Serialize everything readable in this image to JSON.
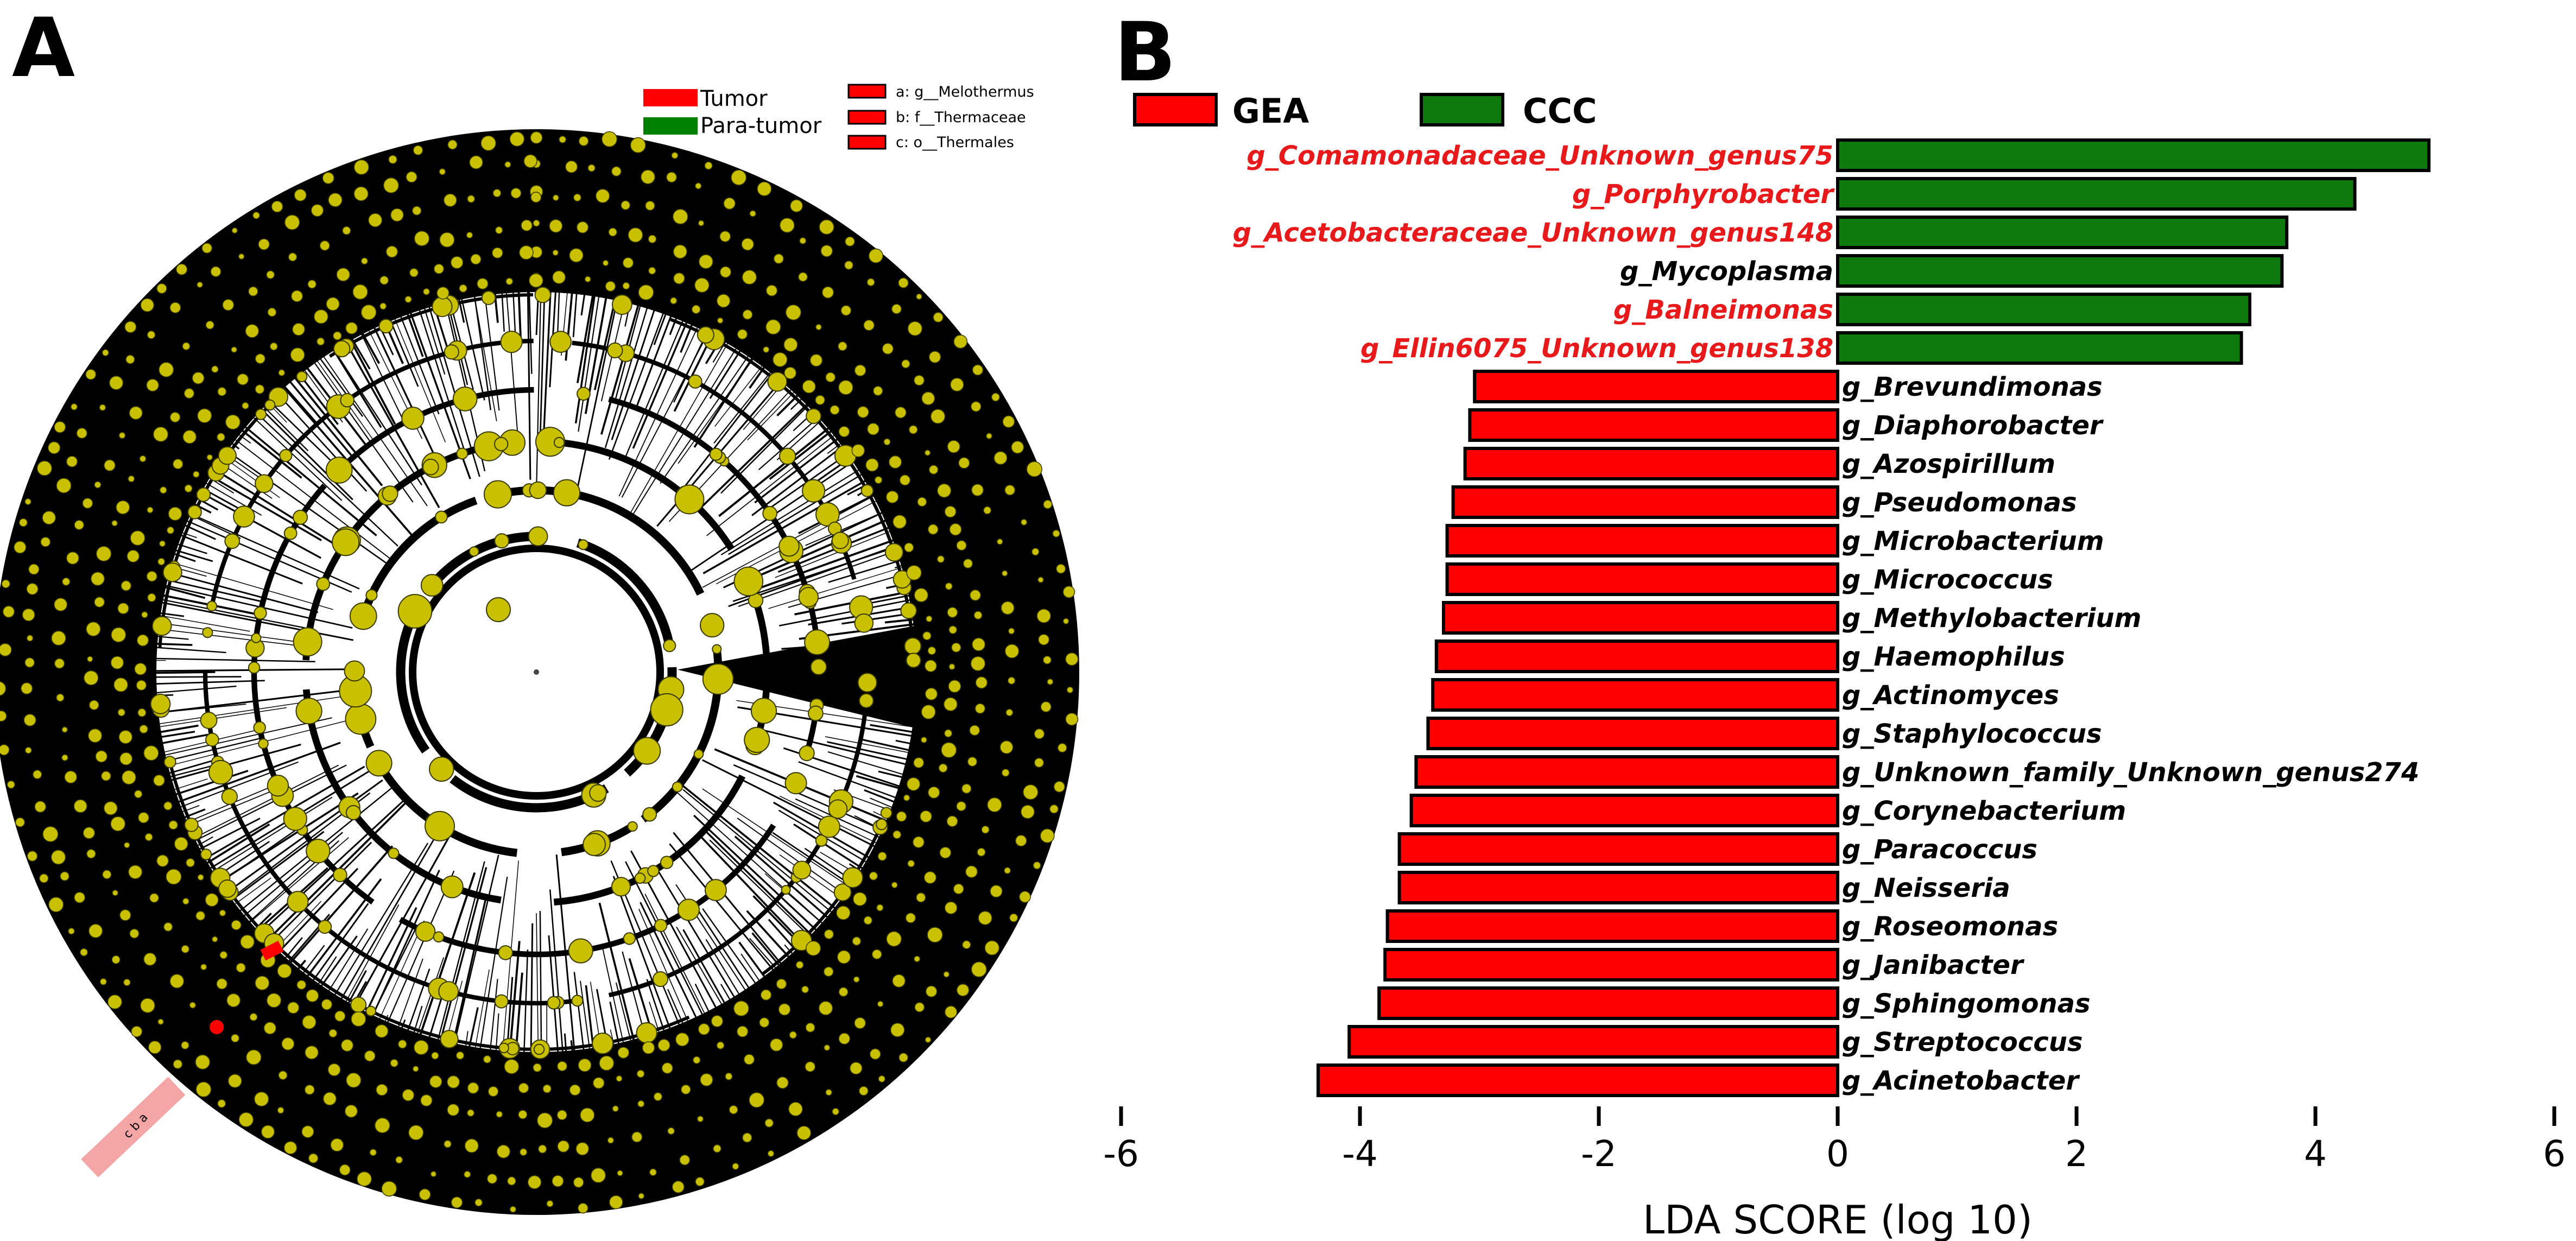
{
  "panels": {
    "left_letter": "A",
    "right_letter": "B"
  },
  "cladogram": {
    "legend": [
      {
        "label": "Tumor",
        "color": "#ff0000"
      },
      {
        "label": "Para-tumor",
        "color": "#008000"
      }
    ],
    "key": [
      {
        "label": "a: g__Melothermus"
      },
      {
        "label": "b: f__Thermaceae"
      },
      {
        "label": "c: o__Thermales"
      }
    ],
    "edge_letters": "c b a",
    "node_color": "#c8c000",
    "highlight_color": "#ff0000"
  },
  "chart_data": {
    "type": "bar",
    "orientation": "horizontal",
    "xlabel": "LDA SCORE (log 10)",
    "xlim": [
      -6,
      6
    ],
    "xticks": [
      -6,
      -4,
      -2,
      0,
      2,
      4,
      6
    ],
    "legend": [
      {
        "name": "GEA",
        "color": "#ff0000"
      },
      {
        "name": "CCC",
        "color": "#0e7a0d"
      }
    ],
    "categories": [
      "g_Comamonadaceae_Unknown_genus75",
      "g_Porphyrobacter",
      "g_Acetobacteraceae_Unknown_genus148",
      "g_Mycoplasma",
      "g_Balneimonas",
      "g_Ellin6075_Unknown_genus138",
      "g_Brevundimonas",
      "g_Diaphorobacter",
      "g_Azospirillum",
      "g_Pseudomonas",
      "g_Microbacterium",
      "g_Micrococcus",
      "g_Methylobacterium",
      "g_Haemophilus",
      "g_Actinomyces",
      "g_Staphylococcus",
      "g_Unknown_family_Unknown_genus274",
      "g_Corynebacterium",
      "g_Paracoccus",
      "g_Neisseria",
      "g_Roseomonas",
      "g_Janibacter",
      "g_Sphingomonas",
      "g_Streptococcus",
      "g_Acinetobacter"
    ],
    "values": [
      4.95,
      4.33,
      3.76,
      3.72,
      3.45,
      3.38,
      -3.04,
      -3.08,
      -3.12,
      -3.22,
      -3.27,
      -3.27,
      -3.3,
      -3.36,
      -3.39,
      -3.43,
      -3.53,
      -3.57,
      -3.67,
      -3.67,
      -3.77,
      -3.79,
      -3.84,
      -4.09,
      -4.35
    ],
    "groups": [
      "CCC",
      "CCC",
      "CCC",
      "CCC",
      "CCC",
      "CCC",
      "GEA",
      "GEA",
      "GEA",
      "GEA",
      "GEA",
      "GEA",
      "GEA",
      "GEA",
      "GEA",
      "GEA",
      "GEA",
      "GEA",
      "GEA",
      "GEA",
      "GEA",
      "GEA",
      "GEA",
      "GEA",
      "GEA"
    ],
    "label_colors": [
      "#e8191a",
      "#e8191a",
      "#e8191a",
      "#000000",
      "#e8191a",
      "#e8191a",
      "#000000",
      "#000000",
      "#000000",
      "#000000",
      "#000000",
      "#000000",
      "#000000",
      "#000000",
      "#000000",
      "#000000",
      "#000000",
      "#000000",
      "#000000",
      "#000000",
      "#000000",
      "#000000",
      "#000000",
      "#000000",
      "#000000"
    ]
  }
}
